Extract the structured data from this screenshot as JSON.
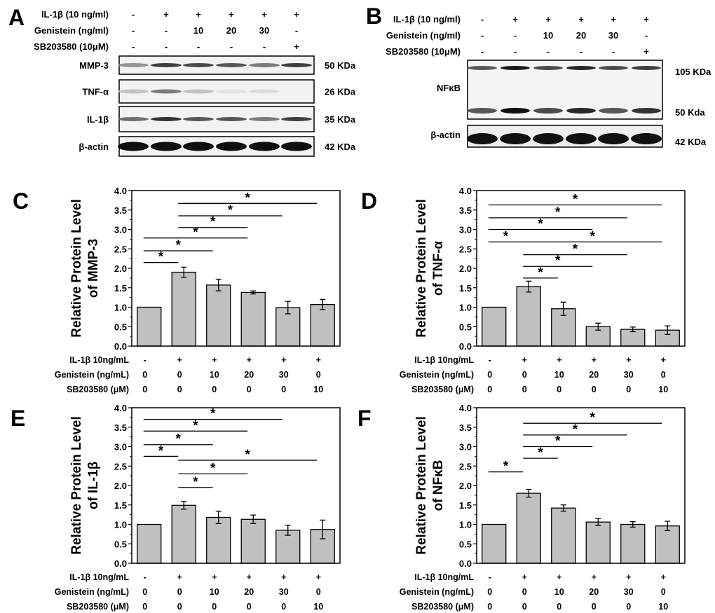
{
  "blot_a": {
    "letter": "A",
    "conditions": [
      {
        "label": "IL-1β (10 ng/ml)",
        "values": [
          "-",
          "+",
          "+",
          "+",
          "+",
          "+"
        ]
      },
      {
        "label": "Genistein (ng/ml)",
        "values": [
          "-",
          "-",
          "10",
          "20",
          "30",
          "-"
        ]
      },
      {
        "label": "SB203580 (10μM)",
        "values": [
          "-",
          "-",
          "-",
          "-",
          "-",
          "+"
        ]
      }
    ],
    "rows": [
      {
        "label": "MMP-3",
        "size": "50 KDa",
        "intensity": [
          0.45,
          0.8,
          0.75,
          0.7,
          0.55,
          0.8
        ]
      },
      {
        "label": "TNF-α",
        "size": "26 KDa",
        "intensity": [
          0.25,
          0.55,
          0.25,
          0.12,
          0.15,
          0.05
        ]
      },
      {
        "label": "IL-1β",
        "size": "35 KDa",
        "intensity": [
          0.6,
          0.85,
          0.7,
          0.7,
          0.55,
          0.8
        ]
      },
      {
        "label": "β-actin",
        "size": "42 KDa",
        "intensity": [
          1,
          1,
          1,
          1,
          1,
          1
        ]
      }
    ]
  },
  "blot_b": {
    "letter": "B",
    "conditions": [
      {
        "label": "IL-1β (10 ng/ml)",
        "values": [
          "-",
          "+",
          "+",
          "+",
          "+",
          "+"
        ]
      },
      {
        "label": "Genistein (ng/ml)",
        "values": [
          "-",
          "-",
          "10",
          "20",
          "30",
          "-"
        ]
      },
      {
        "label": "SB203580 (10μM)",
        "values": [
          "-",
          "-",
          "-",
          "-",
          "-",
          "+"
        ]
      }
    ],
    "nfkb_label": "NFκB",
    "nfkb_sizes": [
      "105 KDa",
      "50 Kda"
    ],
    "actin_label": "β-actin",
    "actin_size": "42 KDa"
  },
  "chart_data": [
    {
      "letter": "C",
      "type": "bar",
      "ylabel": [
        "Relative Protein Level",
        "of MMP-3"
      ],
      "ylim": [
        0,
        4
      ],
      "yticks": [
        "0.0",
        "0.5",
        "1.0",
        "1.5",
        "2.0",
        "2.5",
        "3.0",
        "3.5",
        "4.0"
      ],
      "values": [
        1.0,
        1.9,
        1.57,
        1.38,
        0.99,
        1.07
      ],
      "errors": [
        0,
        0.13,
        0.15,
        0.04,
        0.16,
        0.13
      ],
      "significance": [
        {
          "from": 0,
          "to": 1,
          "y": 2.15,
          "label": "*"
        },
        {
          "from": 0,
          "to": 2,
          "y": 2.45,
          "label": "*"
        },
        {
          "from": 0,
          "to": 3,
          "y": 2.78,
          "label": "*"
        },
        {
          "from": 1,
          "to": 3,
          "y": 3.05,
          "label": "*"
        },
        {
          "from": 1,
          "to": 4,
          "y": 3.35,
          "label": "*"
        },
        {
          "from": 1,
          "to": 5,
          "y": 3.67,
          "label": "*"
        }
      ]
    },
    {
      "letter": "D",
      "type": "bar",
      "ylabel": [
        "Relative Protein Level",
        "of TNF-α"
      ],
      "ylim": [
        0,
        4
      ],
      "yticks": [
        "0.0",
        "0.5",
        "1.0",
        "1.5",
        "2.0",
        "2.5",
        "3.0",
        "3.5",
        "4.0"
      ],
      "values": [
        1.0,
        1.53,
        0.96,
        0.5,
        0.43,
        0.41
      ],
      "errors": [
        0,
        0.14,
        0.17,
        0.09,
        0.06,
        0.11
      ],
      "significance": [
        {
          "from": 0,
          "to": 1,
          "y": 2.68,
          "label": "*"
        },
        {
          "from": 0,
          "to": 3,
          "y": 3.0,
          "label": "*"
        },
        {
          "from": 0,
          "to": 4,
          "y": 3.3,
          "label": "*"
        },
        {
          "from": 0,
          "to": 5,
          "y": 3.63,
          "label": "*"
        },
        {
          "from": 1,
          "to": 5,
          "y": 2.68,
          "label": "*"
        },
        {
          "from": 1,
          "to": 4,
          "y": 2.35,
          "label": "*"
        },
        {
          "from": 1,
          "to": 3,
          "y": 2.05,
          "label": "*"
        },
        {
          "from": 1,
          "to": 2,
          "y": 1.75,
          "label": "*"
        }
      ]
    },
    {
      "letter": "E",
      "type": "bar",
      "ylabel": [
        "Relative Protein Level",
        "of IL-1β"
      ],
      "ylim": [
        0,
        4
      ],
      "yticks": [
        "0.0",
        "0.5",
        "1.0",
        "1.5",
        "2.0",
        "2.5",
        "3.0",
        "3.5",
        "4.0"
      ],
      "values": [
        1.0,
        1.49,
        1.18,
        1.13,
        0.85,
        0.87
      ],
      "errors": [
        0,
        0.1,
        0.16,
        0.11,
        0.13,
        0.24
      ],
      "significance": [
        {
          "from": 0,
          "to": 1,
          "y": 2.75,
          "label": "*"
        },
        {
          "from": 0,
          "to": 2,
          "y": 3.05,
          "label": "*"
        },
        {
          "from": 0,
          "to": 3,
          "y": 3.4,
          "label": "*"
        },
        {
          "from": 0,
          "to": 4,
          "y": 3.7,
          "label": "*"
        },
        {
          "from": 1,
          "to": 5,
          "y": 2.65,
          "label": "*"
        },
        {
          "from": 1,
          "to": 3,
          "y": 2.3,
          "label": "*"
        },
        {
          "from": 1,
          "to": 2,
          "y": 1.95,
          "label": "*"
        }
      ]
    },
    {
      "letter": "F",
      "type": "bar",
      "ylabel": [
        "Relative Protein Level",
        "of NFκB"
      ],
      "ylim": [
        0,
        4
      ],
      "yticks": [
        "0.0",
        "0.5",
        "1.0",
        "1.5",
        "2.0",
        "2.5",
        "3.0",
        "3.5",
        "4.0"
      ],
      "values": [
        1.0,
        1.8,
        1.42,
        1.06,
        1.0,
        0.96
      ],
      "errors": [
        0,
        0.1,
        0.08,
        0.09,
        0.07,
        0.12
      ],
      "significance": [
        {
          "from": 0,
          "to": 1,
          "y": 2.35,
          "label": "*"
        },
        {
          "from": 1,
          "to": 2,
          "y": 2.7,
          "label": "*"
        },
        {
          "from": 1,
          "to": 3,
          "y": 3.0,
          "label": "*"
        },
        {
          "from": 1,
          "to": 4,
          "y": 3.3,
          "label": "*"
        },
        {
          "from": 1,
          "to": 5,
          "y": 3.6,
          "label": "*"
        }
      ]
    }
  ],
  "chart_conditions": [
    {
      "label": "IL-1β 10ng/mL",
      "values": [
        "-",
        "+",
        "+",
        "+",
        "+",
        "+"
      ]
    },
    {
      "label": "Genistein (ng/mL)",
      "values": [
        "0",
        "0",
        "10",
        "20",
        "30",
        "0"
      ]
    },
    {
      "label": "SB203580 (μM)",
      "values": [
        "0",
        "0",
        "0",
        "0",
        "0",
        "10"
      ]
    }
  ],
  "colors": {
    "bar": "#c0c0c0",
    "ink": "#000000"
  }
}
